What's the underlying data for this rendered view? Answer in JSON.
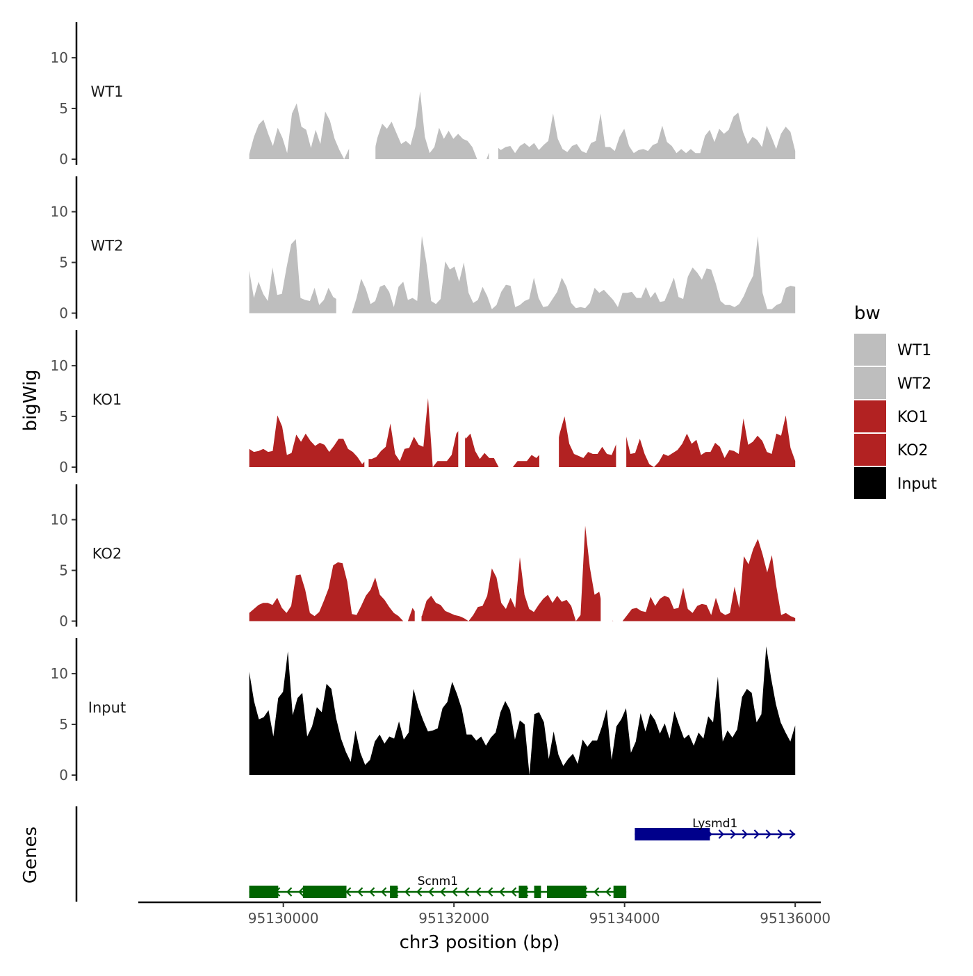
{
  "chart_data": {
    "type": "area",
    "ylabel": "bigWig",
    "genes_label": "Genes",
    "xlabel": "chr3 position (bp)",
    "xlim": [
      95128300,
      95136300
    ],
    "data_start": 95129600,
    "data_end": 95136000,
    "x_ticks": [
      95130000,
      95132000,
      95134000,
      95136000
    ],
    "x_tick_labels": [
      "95130000",
      "95132000",
      "95134000",
      "95136000"
    ],
    "ylim": [
      0,
      13.5
    ],
    "y_ticks": [
      0,
      5,
      10
    ],
    "y_tick_labels": [
      "0",
      "5",
      "10"
    ],
    "legend": {
      "title": "bw",
      "entries": [
        {
          "label": "WT1",
          "color": "#bebebe"
        },
        {
          "label": "WT2",
          "color": "#bebebe"
        },
        {
          "label": "KO1",
          "color": "#b22222"
        },
        {
          "label": "KO2",
          "color": "#b22222"
        },
        {
          "label": "Input",
          "color": "#000000"
        }
      ]
    },
    "series": [
      {
        "name": "WT1",
        "color": "#bebebe",
        "values": [
          0.5,
          2.2,
          3.4,
          3.9,
          2.5,
          1.3,
          3.1,
          2.1,
          0.6,
          4.5,
          5.5,
          3.2,
          2.9,
          1.1,
          2.9,
          1.5,
          4.7,
          3.8,
          2.0,
          0.9,
          0,
          1.0,
          1.9,
          1.4,
          1.8,
          0.9,
          0,
          2.1,
          3.5,
          3.0,
          3.7,
          2.6,
          1.5,
          1.8,
          1.4,
          3.2,
          6.7,
          2.2,
          0.6,
          1.2,
          3.1,
          2.0,
          2.8,
          2.0,
          2.5,
          2.0,
          1.8,
          1.2,
          0,
          0,
          0,
          1.3,
          1.3,
          0.9,
          1.2,
          1.3,
          0.6,
          1.3,
          1.6,
          1.2,
          1.6,
          0.9,
          1.4,
          1.8,
          4.5,
          2.0,
          1.0,
          0.7,
          1.3,
          1.5,
          0.8,
          0.6,
          1.6,
          1.8,
          4.5,
          1.2,
          1.2,
          0.8,
          2.2,
          3.0,
          1.3,
          0.6,
          0.9,
          1.0,
          0.8,
          1.4,
          1.6,
          3.3,
          1.7,
          1.3,
          0.6,
          1.0,
          0.6,
          1.0,
          0.6,
          0.6,
          2.3,
          2.9,
          1.7,
          3.0,
          2.5,
          2.9,
          4.2,
          4.6,
          2.7,
          1.5,
          2.2,
          1.9,
          1.2,
          3.3,
          2.2,
          1.0,
          2.5,
          3.2,
          2.7,
          0.8
        ],
        "gaps": [
          [
            95130770,
            95131080
          ],
          [
            95132410,
            95132520
          ]
        ]
      },
      {
        "name": "WT2",
        "color": "#bebebe",
        "values": [
          4.2,
          1.5,
          3.1,
          1.9,
          1.2,
          4.5,
          1.8,
          1.9,
          4.5,
          6.8,
          7.3,
          1.5,
          1.3,
          1.2,
          2.5,
          0.8,
          1.3,
          2.5,
          1.6,
          1.3,
          0,
          0,
          0,
          1.5,
          3.4,
          2.4,
          0.9,
          1.2,
          2.6,
          2.8,
          2.1,
          0.6,
          2.6,
          3.1,
          1.3,
          1.5,
          1.2,
          7.6,
          4.9,
          1.2,
          0.9,
          1.4,
          5.1,
          4.3,
          4.6,
          3.1,
          5.0,
          2.0,
          1.0,
          1.3,
          2.6,
          1.7,
          0.4,
          0.8,
          2.1,
          2.8,
          2.7,
          0.6,
          0.8,
          1.2,
          1.4,
          3.5,
          1.5,
          0.6,
          0.7,
          1.4,
          2.1,
          3.5,
          2.6,
          1.0,
          0.5,
          0.6,
          0.5,
          1.0,
          2.5,
          2.0,
          2.3,
          1.8,
          1.3,
          0.6,
          2.0,
          2.0,
          2.1,
          1.5,
          1.5,
          2.6,
          1.5,
          2.1,
          1.1,
          1.2,
          2.3,
          3.5,
          1.6,
          1.4,
          3.6,
          4.5,
          4.0,
          3.3,
          4.4,
          4.3,
          2.9,
          1.2,
          0.8,
          0.8,
          0.6,
          0.9,
          1.7,
          2.8,
          3.7,
          7.6,
          2.0,
          0.4,
          0.4,
          0.8,
          1.0,
          2.5,
          2.7,
          2.6
        ],
        "gaps": [
          [
            95130620,
            95130790
          ]
        ]
      },
      {
        "name": "KO1",
        "color": "#b22222",
        "values": [
          1.8,
          1.5,
          1.6,
          1.8,
          1.5,
          1.6,
          5.1,
          4.0,
          1.2,
          1.4,
          3.2,
          2.5,
          3.3,
          2.6,
          2.1,
          2.4,
          2.2,
          1.5,
          2.1,
          2.8,
          2.8,
          1.8,
          1.5,
          1.0,
          0.3,
          0.8,
          0.8,
          1.0,
          1.6,
          2.0,
          4.3,
          1.3,
          0.6,
          1.8,
          1.9,
          3.0,
          2.2,
          2.0,
          6.8,
          0,
          0.6,
          0.6,
          0.6,
          1.2,
          3.3,
          3.9,
          2.8,
          3.3,
          1.6,
          0.8,
          1.4,
          0.9,
          0.9,
          0,
          0,
          0,
          0,
          0.6,
          0.6,
          0.6,
          1.2,
          0.9,
          1.4,
          0,
          0,
          1.3,
          3.4,
          5.0,
          2.3,
          1.3,
          1.1,
          0.9,
          1.5,
          1.3,
          1.3,
          2.0,
          1.3,
          1.2,
          2.3,
          2.0,
          3.2,
          1.3,
          1.4,
          2.8,
          1.3,
          0.3,
          0,
          0.5,
          1.3,
          1.1,
          1.4,
          1.7,
          2.3,
          3.3,
          2.3,
          2.7,
          1.2,
          1.5,
          1.5,
          2.4,
          2.0,
          0.9,
          1.7,
          1.6,
          1.3,
          4.8,
          2.2,
          2.5,
          3.1,
          2.6,
          1.5,
          1.3,
          3.3,
          3.1,
          5.1,
          1.9,
          0.6
        ],
        "gaps": [
          [
            95130950,
            95131000
          ],
          [
            95132050,
            95132130
          ],
          [
            95133000,
            95133230
          ],
          [
            95133900,
            95134020
          ]
        ]
      },
      {
        "name": "KO2",
        "color": "#b22222",
        "values": [
          0.8,
          1.2,
          1.6,
          1.8,
          1.8,
          1.6,
          2.3,
          1.3,
          0.8,
          1.5,
          4.5,
          4.6,
          3.1,
          0.8,
          0.5,
          0.9,
          2.0,
          3.2,
          5.5,
          5.8,
          5.7,
          3.9,
          0.7,
          0.6,
          1.5,
          2.5,
          3.1,
          4.3,
          2.6,
          2.1,
          1.4,
          0.8,
          0.5,
          0,
          0,
          1.3,
          0.6,
          0.5,
          2.0,
          2.5,
          1.8,
          1.6,
          1.0,
          0.8,
          0.6,
          0.5,
          0.3,
          0,
          0.6,
          1.4,
          1.5,
          2.5,
          5.2,
          4.3,
          1.8,
          1.2,
          2.3,
          1.3,
          6.3,
          2.6,
          1.2,
          0.9,
          1.6,
          2.2,
          2.6,
          1.8,
          2.5,
          1.9,
          2.1,
          1.5,
          0,
          0.6,
          9.4,
          5.3,
          2.6,
          2.9,
          0.8,
          0.6,
          0,
          0,
          0,
          0.6,
          1.2,
          1.3,
          1.0,
          0.9,
          2.4,
          1.5,
          2.2,
          2.5,
          2.3,
          1.2,
          1.3,
          3.3,
          1.2,
          0.8,
          1.5,
          1.7,
          1.6,
          0.6,
          2.3,
          0.9,
          0.6,
          0.8,
          3.4,
          1.3,
          6.4,
          5.6,
          7.1,
          8.1,
          6.6,
          4.8,
          6.5,
          3.3,
          0.6,
          0.8,
          0.5,
          0.3
        ],
        "gaps": [
          [
            95131540,
            95131620
          ],
          [
            95133720,
            95133860
          ]
        ]
      },
      {
        "name": "Input",
        "color": "#000000",
        "values": [
          10.2,
          7.3,
          5.5,
          5.7,
          6.4,
          3.8,
          7.6,
          8.2,
          12.2,
          5.9,
          7.6,
          8.1,
          3.8,
          4.8,
          6.7,
          6.2,
          9.0,
          8.5,
          5.6,
          3.6,
          2.3,
          1.3,
          4.4,
          2.2,
          1.0,
          1.5,
          3.3,
          4.0,
          3.1,
          3.8,
          3.6,
          5.3,
          3.5,
          4.2,
          8.5,
          6.7,
          5.4,
          4.3,
          4.4,
          4.6,
          6.6,
          7.2,
          9.2,
          8.0,
          6.5,
          4.0,
          4.0,
          3.4,
          3.8,
          2.9,
          3.7,
          4.2,
          6.2,
          7.3,
          6.4,
          3.5,
          5.4,
          5.0,
          0,
          6.0,
          6.2,
          5.2,
          1.6,
          4.3,
          2.0,
          0.9,
          1.6,
          2.1,
          1.1,
          3.5,
          2.8,
          3.4,
          3.4,
          4.8,
          6.5,
          1.5,
          4.8,
          5.5,
          6.6,
          2.2,
          3.3,
          6.1,
          4.3,
          6.1,
          5.4,
          4.1,
          5.1,
          3.6,
          6.3,
          4.9,
          3.6,
          4.0,
          2.9,
          4.2,
          3.6,
          5.8,
          5.2,
          9.7,
          3.3,
          4.4,
          3.7,
          4.5,
          7.7,
          8.5,
          8.1,
          5.2,
          6.0,
          12.7,
          9.6,
          7.0,
          5.2,
          4.2,
          3.3,
          4.9
        ],
        "gaps": []
      }
    ],
    "genes": [
      {
        "name": "Lysmd1",
        "color": "#00008b",
        "strand": "+",
        "start": 95134120,
        "end": 95136000,
        "exons": [
          [
            95134120,
            95135000
          ]
        ]
      },
      {
        "name": "Scnm1",
        "color": "#006400",
        "strand": "-",
        "start": 95129600,
        "end": 95134020,
        "exons": [
          [
            95129600,
            95129940
          ],
          [
            95130230,
            95130740
          ],
          [
            95131250,
            95131340
          ],
          [
            95132760,
            95132860
          ],
          [
            95132940,
            95133020
          ],
          [
            95133090,
            95133550
          ],
          [
            95133870,
            95134020
          ]
        ]
      }
    ]
  }
}
